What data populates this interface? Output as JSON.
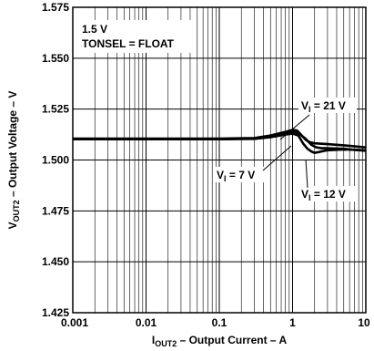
{
  "chart_data": {
    "type": "line",
    "title": "",
    "xlabel": {
      "main": "I",
      "sub": "OUT2",
      "rest": " – Output Current – A"
    },
    "ylabel": {
      "main": "V",
      "sub": "OUT2",
      "rest": " – Output Voltage – V"
    },
    "x_scale": "log",
    "xlim": [
      0.001,
      10
    ],
    "ylim": [
      1.425,
      1.575
    ],
    "x_ticks": [
      "0.001",
      "0.01",
      "0.1",
      "1",
      "10"
    ],
    "y_ticks": [
      "1.425",
      "1.450",
      "1.475",
      "1.500",
      "1.525",
      "1.550",
      "1.575"
    ],
    "grid": true,
    "annotations": {
      "line1": "1.5 V",
      "line2": "TONSEL = FLOAT"
    },
    "series": [
      {
        "name": "VI = 21 V",
        "label": {
          "main": "V",
          "sub": "I",
          "rest": " = 21 V"
        },
        "x": [
          0.001,
          0.01,
          0.1,
          0.3,
          0.5,
          0.8,
          1.0,
          1.15,
          1.3,
          1.5,
          1.7,
          2.0,
          3.0,
          5.0,
          10.0
        ],
        "y": [
          1.5105,
          1.5105,
          1.5105,
          1.5108,
          1.512,
          1.5138,
          1.5148,
          1.5145,
          1.5125,
          1.51,
          1.5088,
          1.5082,
          1.5078,
          1.5072,
          1.5062
        ]
      },
      {
        "name": "VI = 7 V",
        "label": {
          "main": "V",
          "sub": "I",
          "rest": " = 7 V"
        },
        "x": [
          0.001,
          0.01,
          0.1,
          0.3,
          0.5,
          0.8,
          1.0,
          1.2,
          1.4,
          1.6,
          1.8,
          2.0,
          3.0,
          5.0,
          10.0
        ],
        "y": [
          1.5102,
          1.5102,
          1.5102,
          1.5104,
          1.5112,
          1.5125,
          1.513,
          1.512,
          1.508,
          1.5055,
          1.5042,
          1.5035,
          1.5048,
          1.5052,
          1.5048
        ]
      },
      {
        "name": "VI = 12 V",
        "label": {
          "main": "V",
          "sub": "I",
          "rest": " = 12 V"
        },
        "x": [
          0.001,
          0.01,
          0.1,
          0.3,
          0.5,
          0.8,
          1.0,
          1.2,
          1.5,
          1.8,
          2.1,
          2.5,
          3.0,
          5.0,
          10.0
        ],
        "y": [
          1.5102,
          1.5102,
          1.5102,
          1.5106,
          1.5116,
          1.513,
          1.5138,
          1.5132,
          1.5105,
          1.5075,
          1.5062,
          1.5058,
          1.5058,
          1.5055,
          1.5045
        ]
      }
    ]
  }
}
